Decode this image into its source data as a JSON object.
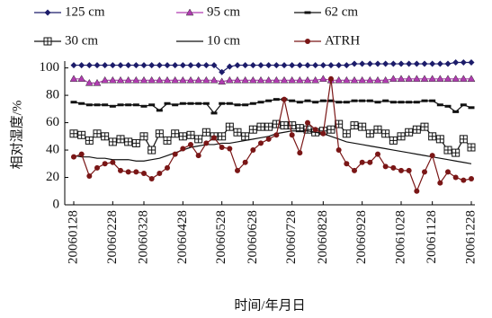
{
  "chart_data": {
    "type": "line",
    "xlabel": "时间/年月日",
    "ylabel": "相对湿度/%",
    "categories": [
      "20060128",
      null,
      null,
      null,
      null,
      "20060228",
      null,
      null,
      null,
      "20060328",
      null,
      null,
      null,
      null,
      "20060428",
      null,
      null,
      null,
      null,
      "20060528",
      null,
      null,
      null,
      "20060628",
      null,
      null,
      null,
      null,
      "20060728",
      null,
      null,
      null,
      "20060828",
      null,
      null,
      null,
      null,
      "20060928",
      null,
      null,
      null,
      null,
      "20061028",
      null,
      null,
      null,
      "20061128",
      null,
      null,
      null,
      null,
      "20061228"
    ],
    "ylim": [
      0,
      105
    ],
    "yticks": [
      0,
      20,
      40,
      60,
      80,
      100
    ],
    "series": [
      {
        "name": "125 cm",
        "color": "#1c1c6a",
        "marker": "diamond",
        "values": [
          102,
          102,
          102,
          102,
          102,
          102,
          102,
          102,
          102,
          102,
          102,
          102,
          102,
          102,
          102,
          102,
          102,
          102,
          102,
          97,
          101,
          102,
          102,
          102,
          102,
          102,
          102,
          102,
          102,
          102,
          102,
          102,
          102,
          102,
          102,
          102,
          103,
          103,
          103,
          103,
          103,
          103,
          103,
          103,
          103,
          103,
          103,
          103,
          103,
          104,
          104,
          104
        ]
      },
      {
        "name": "95 cm",
        "color": "#b03cb0",
        "marker": "triangle",
        "values": [
          92,
          92,
          89,
          89,
          91,
          91,
          91,
          91,
          91,
          91,
          91,
          91,
          91,
          91,
          91,
          91,
          91,
          91,
          91,
          90,
          91,
          91,
          91,
          91,
          91,
          91,
          91,
          91,
          91,
          91,
          91,
          91,
          92,
          91,
          91,
          91,
          91,
          91,
          91,
          91,
          91,
          92,
          92,
          92,
          92,
          92,
          92,
          92,
          92,
          92,
          92,
          92
        ]
      },
      {
        "name": "62 cm",
        "color": "#111111",
        "marker": "dash",
        "values": [
          75,
          74,
          73,
          73,
          73,
          72,
          73,
          73,
          73,
          72,
          73,
          69,
          74,
          73,
          74,
          74,
          74,
          74,
          67,
          74,
          74,
          73,
          73,
          74,
          75,
          76,
          77,
          77,
          76,
          75,
          76,
          75,
          76,
          76,
          75,
          75,
          76,
          76,
          76,
          75,
          76,
          75,
          75,
          75,
          75,
          76,
          76,
          73,
          72,
          68,
          73,
          71
        ]
      },
      {
        "name": "30 cm",
        "color": "#111111",
        "marker": "squareplus",
        "values": [
          52,
          51,
          47,
          52,
          50,
          46,
          48,
          46,
          45,
          50,
          40,
          52,
          47,
          52,
          50,
          51,
          48,
          53,
          50,
          50,
          57,
          53,
          50,
          55,
          57,
          57,
          59,
          58,
          58,
          56,
          55,
          53,
          54,
          55,
          59,
          52,
          58,
          57,
          52,
          55,
          52,
          47,
          50,
          53,
          55,
          57,
          50,
          48,
          40,
          38,
          48,
          42
        ]
      },
      {
        "name": "10 cm",
        "color": "#111111",
        "marker": "none",
        "values": [
          36,
          35,
          35,
          34,
          34,
          33,
          33,
          33,
          32,
          32,
          33,
          34,
          36,
          38,
          40,
          42,
          43,
          44,
          44,
          45,
          45,
          46,
          47,
          48,
          49,
          50,
          52,
          53,
          54,
          54,
          54,
          53,
          52,
          50,
          48,
          46,
          45,
          44,
          43,
          42,
          41,
          40,
          39,
          38,
          37,
          36,
          35,
          34,
          33,
          32,
          31,
          30
        ]
      },
      {
        "name": "ATRH",
        "color": "#7a1616",
        "marker": "circle",
        "values": [
          35,
          37,
          21,
          27,
          30,
          31,
          25,
          24,
          24,
          23,
          19,
          23,
          27,
          37,
          41,
          44,
          36,
          45,
          49,
          42,
          41,
          25,
          31,
          40,
          45,
          48,
          51,
          77,
          51,
          38,
          60,
          55,
          52,
          92,
          40,
          30,
          25,
          31,
          31,
          37,
          28,
          27,
          25,
          25,
          10,
          24,
          36,
          16,
          24,
          20,
          18,
          19
        ]
      }
    ]
  }
}
